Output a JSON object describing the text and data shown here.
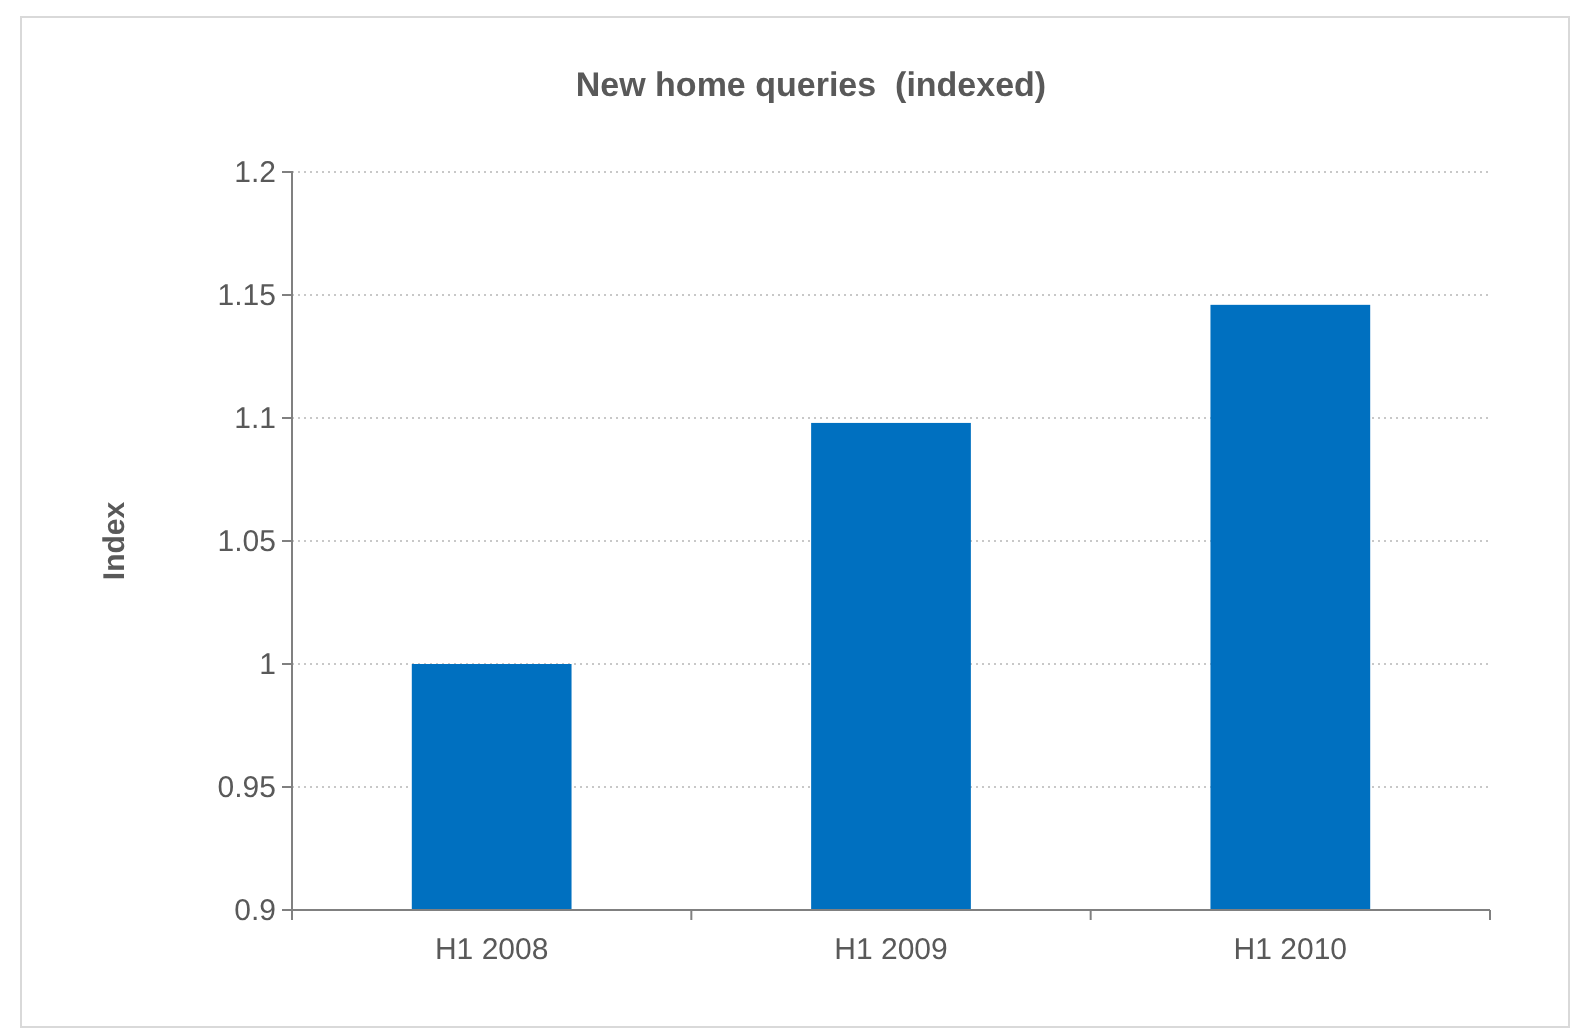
{
  "chart_data": {
    "type": "bar",
    "title": "New home queries  (indexed)",
    "ylabel": "Index",
    "categories": [
      "H1 2008",
      "H1 2009",
      "H1 2010"
    ],
    "series": [
      {
        "color": "#0070c0",
        "values": [
          1.0,
          1.098,
          1.146
        ]
      }
    ],
    "ylim": [
      0.9,
      1.2
    ],
    "yticks": [
      {
        "value": 0.9,
        "label": "0.9"
      },
      {
        "value": 0.95,
        "label": "0.95"
      },
      {
        "value": 1,
        "label": "1"
      },
      {
        "value": 1.05,
        "label": "1.05"
      },
      {
        "value": 1.1,
        "label": "1.1"
      },
      {
        "value": 1.15,
        "label": "1.15"
      },
      {
        "value": 1.2,
        "label": "1.2"
      }
    ],
    "grid": "y"
  }
}
